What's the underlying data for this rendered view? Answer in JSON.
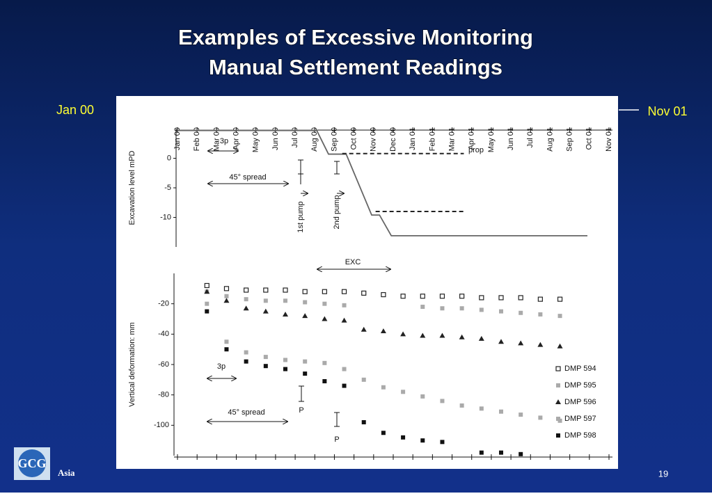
{
  "title_lines": [
    "Examples of Excessive Monitoring",
    "Manual Settlement Readings"
  ],
  "left_label": "Jan 00",
  "right_label": "Nov 01",
  "footer": {
    "logo_text": "GCG",
    "region": "Asia",
    "page": "19"
  },
  "chart_data": [
    {
      "type": "line",
      "ylabel": "Excavation level mPD",
      "xlim": [
        0,
        22
      ],
      "ylim": [
        -15,
        5
      ],
      "yticks": [
        0,
        -5,
        -10
      ],
      "xticks": [
        {
          "value": 0,
          "label": "Jan 00"
        },
        {
          "value": 1,
          "label": "Feb 00"
        },
        {
          "value": 2,
          "label": "Mar 00"
        },
        {
          "value": 3,
          "label": "Apr 00"
        },
        {
          "value": 4,
          "label": "May 00"
        },
        {
          "value": 5,
          "label": "Jun 00"
        },
        {
          "value": 6,
          "label": "Jul 00"
        },
        {
          "value": 7,
          "label": "Aug 00"
        },
        {
          "value": 8,
          "label": "Sep 00"
        },
        {
          "value": 9,
          "label": "Oct 00"
        },
        {
          "value": 10,
          "label": "Nov 00"
        },
        {
          "value": 11,
          "label": "Dec 00"
        },
        {
          "value": 12,
          "label": "Jan 01"
        },
        {
          "value": 13,
          "label": "Feb 01"
        },
        {
          "value": 14,
          "label": "Mar 01"
        },
        {
          "value": 15,
          "label": "Apr 01"
        },
        {
          "value": 16,
          "label": "May 01"
        },
        {
          "value": 17,
          "label": "Jun 01"
        },
        {
          "value": 18,
          "label": "Jul 01"
        },
        {
          "value": 19,
          "label": "Aug 01"
        },
        {
          "value": 20,
          "label": "Sep 01"
        },
        {
          "value": 21,
          "label": "Oct 01"
        },
        {
          "value": 22,
          "label": "Nov 01"
        }
      ],
      "series": [
        {
          "color": "#666666",
          "dashed": false,
          "x": [
            0,
            7.1,
            7.7,
            8.6,
            9.9,
            10.3,
            10.9,
            20.9
          ],
          "values": [
            4.7,
            4.7,
            0.7,
            0.7,
            -9.6,
            -9.6,
            -13.1,
            -13.1
          ]
        },
        {
          "color": "#222222",
          "dashed": true,
          "x": [
            8.4,
            14.6
          ],
          "values": [
            0.8,
            0.8
          ]
        },
        {
          "color": "#222222",
          "dashed": true,
          "x": [
            10.1,
            14.7
          ],
          "values": [
            -9,
            -9
          ]
        }
      ],
      "annotations": [
        "3p",
        "45° spread",
        "1st pump",
        "2nd pump",
        "prop"
      ]
    },
    {
      "type": "scatter",
      "ylabel": "Vertical deformation: mm",
      "xlim": [
        0,
        22
      ],
      "ylim": [
        -120,
        0
      ],
      "yticks": [
        -20,
        -40,
        -60,
        -80,
        -100
      ],
      "x": [
        1.5,
        2.5,
        3.5,
        4.5,
        5.5,
        6.5,
        7.5,
        8.5,
        9.5,
        10.5,
        11.5,
        12.5,
        13.5,
        14.5,
        15.5,
        16.5,
        17.5,
        18.5,
        19.5
      ],
      "series": [
        {
          "name": "DMP 594",
          "color": "#222222",
          "marker": "square-open",
          "values": [
            -8,
            -10,
            -11,
            -11,
            -11,
            -12,
            -12,
            -12,
            -13,
            -14,
            -15,
            -15,
            -15,
            -15,
            -16,
            -16,
            -16,
            -17,
            -17
          ]
        },
        {
          "name": "DMP 595",
          "color": "#aaaaaa",
          "marker": "square",
          "values": [
            -12,
            -15,
            -17,
            -18,
            -18,
            -19,
            -20,
            -21,
            null,
            null,
            null,
            -22,
            -23,
            -23,
            -24,
            -25,
            -26,
            -27,
            -28
          ]
        },
        {
          "name": "DMP 596",
          "color": "#222222",
          "marker": "triangle",
          "values": [
            -12,
            -18,
            -23,
            -25,
            -27,
            -28,
            -30,
            -31,
            -37,
            -38,
            -40,
            -41,
            -41,
            -42,
            -43,
            -45,
            -46,
            -47,
            -48
          ]
        },
        {
          "name": "DMP 597",
          "color": "#aaaaaa",
          "marker": "square",
          "values": [
            -20,
            -45,
            -52,
            -55,
            -57,
            -58,
            -59,
            -63,
            -70,
            -75,
            -78,
            -81,
            -84,
            -87,
            -89,
            -91,
            -93,
            -95,
            -97
          ]
        },
        {
          "name": "DMP 598",
          "color": "#111111",
          "marker": "square",
          "values": [
            -25,
            -50,
            -58,
            -61,
            -63,
            -66,
            -71,
            -74,
            -98,
            -105,
            -108,
            -110,
            -111,
            null,
            -118,
            -118,
            -119,
            null,
            null
          ]
        }
      ],
      "annotations": [
        "3p",
        "45° spread",
        "P",
        "P",
        "EXC"
      ]
    }
  ]
}
